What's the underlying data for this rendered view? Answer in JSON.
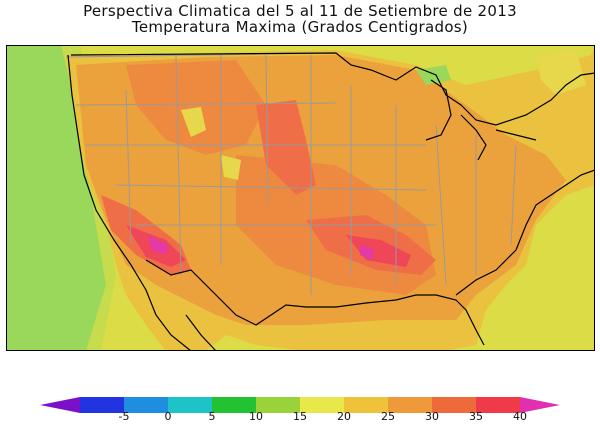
{
  "title": {
    "line1": "Perspectiva Climatica del 5 al 11 de Setiembre de 2013",
    "line2": "Temperatura Maxima (Grados Centigrados)"
  },
  "legend": {
    "ticks": [
      "-5",
      "0",
      "5",
      "10",
      "15",
      "20",
      "25",
      "30",
      "35",
      "40"
    ],
    "colors": [
      "#7a10c8",
      "#2233e0",
      "#1f8ee0",
      "#1ec3c8",
      "#22c233",
      "#9ad23a",
      "#e8e84a",
      "#efc23a",
      "#ef9a3a",
      "#ef6a3a",
      "#ef3a4a",
      "#e030b0"
    ]
  },
  "map_colors": {
    "ocean_cool": "#99d85a",
    "ocean_warm": "#dcdc46",
    "band_25": "#eac240",
    "band_30": "#eba23d",
    "band_33": "#ee8a40",
    "band_35": "#ef6e48",
    "band_38": "#ef4658",
    "band_40": "#e23aa6",
    "cool_spot": "#e6d84a",
    "border": "#9a9a9a",
    "coast": "#000000"
  }
}
